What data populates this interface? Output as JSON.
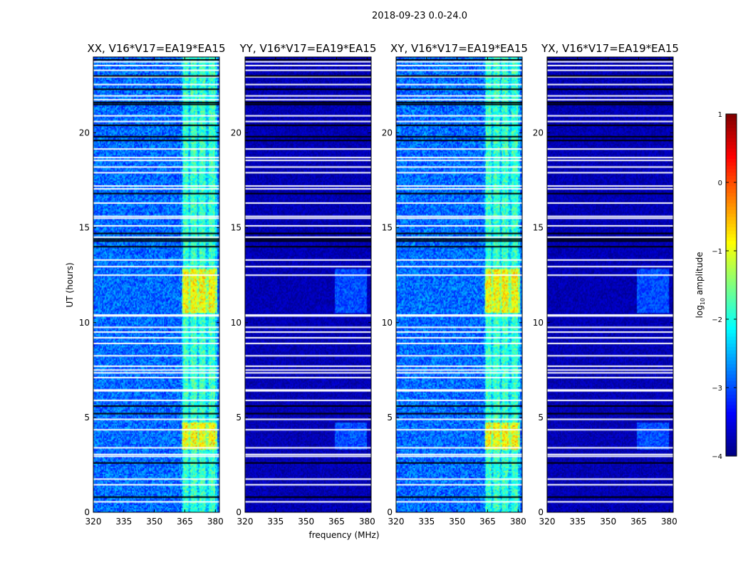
{
  "chart_data": {
    "type": "heatmap",
    "suptitle": "2018-09-23 0.0-24.0",
    "panels": [
      {
        "title": "XX, V16*V17=EA19*EA15",
        "level": "strong",
        "seed": 11
      },
      {
        "title": "YY, V16*V17=EA19*EA15",
        "level": "weak",
        "seed": 23
      },
      {
        "title": "XY, V16*V17=EA19*EA15",
        "level": "strong",
        "seed": 37
      },
      {
        "title": "YX, V16*V17=EA19*EA15",
        "level": "weak",
        "seed": 53
      }
    ],
    "x_axis": {
      "label": "frequency (MHz)",
      "range": [
        320,
        382
      ],
      "ticks": [
        320,
        335,
        350,
        365,
        380
      ]
    },
    "y_axis": {
      "label": "UT (hours)",
      "range": [
        0,
        24
      ],
      "ticks": [
        0,
        5,
        10,
        15,
        20
      ]
    },
    "colorbar": {
      "label": "log10 amplitude",
      "label_main": "log",
      "label_sub": "10",
      "label_rest": " amplitude",
      "range": [
        -4,
        1
      ],
      "ticks": [
        -4,
        -3,
        -2,
        -1,
        0,
        1
      ],
      "tick_labels": [
        "−4",
        "−3",
        "−2",
        "−1",
        "0",
        "1"
      ],
      "colormap": "jet"
    },
    "rfi_band_mhz": [
      363.5,
      381
    ],
    "rfi_columns_mhz": [
      365.5,
      369.5,
      373.5,
      378.5
    ],
    "rfi_bursts_ut": [
      [
        3.3,
        4.7
      ],
      [
        10.5,
        12.8
      ]
    ],
    "flagged_white_ut": [
      0.55,
      1.45,
      1.75,
      2.95,
      3.05,
      3.4,
      4.35,
      4.9,
      5.9,
      6.4,
      6.45,
      7.1,
      7.35,
      7.5,
      7.7,
      8.25,
      8.9,
      9.2,
      9.5,
      9.75,
      10.35,
      10.4,
      12.5,
      12.95,
      13.3,
      14.5,
      15.1,
      15.5,
      15.6,
      16.3,
      17.05,
      17.2,
      17.9,
      18.2,
      18.55,
      18.7,
      19.15,
      20.6,
      20.9,
      21.75,
      21.95,
      22.55,
      22.95,
      23.3,
      23.55,
      23.75
    ],
    "flagged_black_ut": [
      0.8,
      2.6,
      5.2,
      5.6,
      14.0,
      14.3,
      14.4,
      14.7,
      16.8,
      19.6,
      19.8,
      20.4,
      21.5,
      21.6,
      22.3,
      23.0,
      23.85
    ]
  }
}
